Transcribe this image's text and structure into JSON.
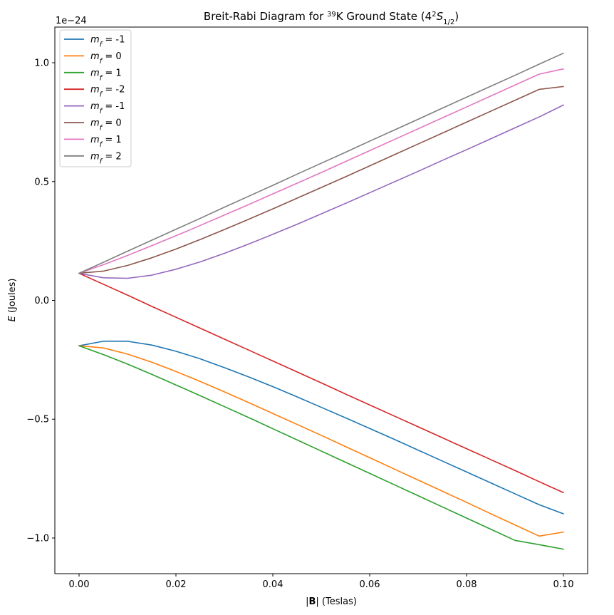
{
  "chart_data": {
    "type": "line",
    "title": {
      "main": "Breit-Rabi Diagram for ",
      "isotope_mass": "39",
      "element": "K Ground State (4",
      "term_sup": "2",
      "term_letter": "S",
      "term_sub": "1/2",
      "close": ")"
    },
    "xlabel": {
      "b_open": "|",
      "b_symbol": "B",
      "b_close": "|",
      "units": " (Teslas)"
    },
    "ylabel": {
      "symbol": "E",
      "units": " (Joules)"
    },
    "y_offset_label": "1e−24",
    "xlim": [
      -0.005,
      0.105
    ],
    "ylim": [
      -1.15,
      1.15
    ],
    "x_ticks": [
      0.0,
      0.02,
      0.04,
      0.06,
      0.08,
      0.1
    ],
    "x_tick_labels": [
      "0.00",
      "0.02",
      "0.04",
      "0.06",
      "0.08",
      "0.10"
    ],
    "y_ticks": [
      -1.0,
      -0.5,
      0.0,
      0.5,
      1.0
    ],
    "y_tick_labels": [
      "−1.0",
      "−0.5",
      "0.0",
      "0.5",
      "1.0"
    ],
    "grid": false,
    "legend_position": "upper-left",
    "x": [
      0.0,
      0.005,
      0.01,
      0.015,
      0.02,
      0.025,
      0.03,
      0.035,
      0.04,
      0.045,
      0.05,
      0.055,
      0.06,
      0.065,
      0.07,
      0.075,
      0.08,
      0.085,
      0.09,
      0.095,
      0.1
    ],
    "series": [
      {
        "name": "-1",
        "color": "#1f77b4",
        "values": [
          -0.191,
          -0.172,
          -0.172,
          -0.188,
          -0.214,
          -0.246,
          -0.283,
          -0.322,
          -0.363,
          -0.406,
          -0.45,
          -0.494,
          -0.539,
          -0.584,
          -0.63,
          -0.676,
          -0.722,
          -0.768,
          -0.814,
          -0.86,
          -0.898
        ]
      },
      {
        "name": "0",
        "color": "#ff7f0e",
        "values": [
          -0.191,
          -0.2,
          -0.226,
          -0.26,
          -0.299,
          -0.341,
          -0.385,
          -0.43,
          -0.476,
          -0.522,
          -0.568,
          -0.615,
          -0.662,
          -0.709,
          -0.756,
          -0.803,
          -0.85,
          -0.898,
          -0.945,
          -0.992,
          -0.975
        ]
      },
      {
        "name": "1",
        "color": "#2ca02c",
        "values": [
          -0.191,
          -0.228,
          -0.268,
          -0.311,
          -0.356,
          -0.401,
          -0.447,
          -0.493,
          -0.54,
          -0.587,
          -0.634,
          -0.681,
          -0.728,
          -0.775,
          -0.822,
          -0.869,
          -0.916,
          -0.963,
          -1.01,
          -1.028,
          -1.047
        ]
      },
      {
        "name": "-2",
        "color": "#d62728",
        "values": [
          0.114,
          0.068,
          0.022,
          -0.025,
          -0.071,
          -0.117,
          -0.163,
          -0.209,
          -0.255,
          -0.301,
          -0.347,
          -0.394,
          -0.44,
          -0.486,
          -0.532,
          -0.578,
          -0.624,
          -0.67,
          -0.716,
          -0.763,
          -0.809
        ]
      },
      {
        "name": "-1",
        "color": "#9467bd",
        "values": [
          0.114,
          0.095,
          0.093,
          0.106,
          0.131,
          0.162,
          0.198,
          0.237,
          0.278,
          0.32,
          0.364,
          0.408,
          0.453,
          0.498,
          0.543,
          0.589,
          0.634,
          0.68,
          0.726,
          0.772,
          0.822
        ]
      },
      {
        "name": "0",
        "color": "#8c564b",
        "values": [
          0.114,
          0.123,
          0.147,
          0.179,
          0.216,
          0.256,
          0.298,
          0.341,
          0.385,
          0.43,
          0.475,
          0.52,
          0.566,
          0.612,
          0.658,
          0.704,
          0.75,
          0.796,
          0.842,
          0.888,
          0.9
        ]
      },
      {
        "name": "1",
        "color": "#e377c2",
        "values": [
          0.114,
          0.15,
          0.189,
          0.23,
          0.272,
          0.315,
          0.359,
          0.403,
          0.448,
          0.493,
          0.538,
          0.584,
          0.63,
          0.676,
          0.722,
          0.768,
          0.814,
          0.86,
          0.906,
          0.952,
          0.974
        ]
      },
      {
        "name": "2",
        "color": "#7f7f7f",
        "values": [
          0.114,
          0.16,
          0.207,
          0.253,
          0.299,
          0.345,
          0.392,
          0.438,
          0.484,
          0.531,
          0.577,
          0.623,
          0.67,
          0.716,
          0.762,
          0.809,
          0.855,
          0.901,
          0.947,
          0.994,
          1.04
        ]
      }
    ]
  }
}
